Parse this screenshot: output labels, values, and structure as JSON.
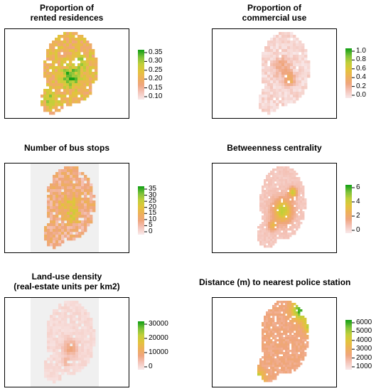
{
  "chart_data": [
    {
      "type": "heatmap",
      "title_lines": [
        "Proportion of",
        "rented residences"
      ],
      "legend_ticks": [
        "0.35",
        "0.30",
        "0.25",
        "0.20",
        "0.15",
        "0.10"
      ],
      "value_range": [
        0.07,
        0.37
      ],
      "dominant_color": "#e8c24a",
      "hotspot_color": "#1a9e1a"
    },
    {
      "type": "heatmap",
      "title_lines": [
        "Proportion of",
        "commercial use"
      ],
      "legend_ticks": [
        "1.0",
        "0.8",
        "0.6",
        "0.4",
        "0.2",
        "0.0"
      ],
      "value_range": [
        0.0,
        1.0
      ],
      "dominant_color": "#f6d3cf",
      "hotspot_color": "#1a9e1a"
    },
    {
      "type": "heatmap",
      "title_lines": [
        "Number of bus stops"
      ],
      "legend_ticks": [
        "35",
        "30",
        "25",
        "20",
        "15",
        "10",
        "5",
        "0"
      ],
      "value_range": [
        0,
        38
      ],
      "dominant_color": "#f2b89a",
      "hotspot_color": "#1a9e1a"
    },
    {
      "type": "heatmap",
      "title_lines": [
        "Betweenness centrality"
      ],
      "legend_ticks": [
        "6",
        "4",
        "2",
        "0"
      ],
      "value_range": [
        -0.8,
        7
      ],
      "dominant_color": "#f5cfc6",
      "hotspot_color": "#1a9e1a"
    },
    {
      "type": "heatmap",
      "title_lines": [
        "Land-use density",
        "(real-estate units per km2)"
      ],
      "legend_ticks": [
        "30000",
        "20000",
        "10000",
        "0"
      ],
      "value_range": [
        0,
        38000
      ],
      "dominant_color": "#f8dcd8",
      "hotspot_color": "#1a9e1a"
    },
    {
      "type": "heatmap",
      "title_lines": [
        "Distance (m) to nearest police station"
      ],
      "legend_ticks": [
        "6000",
        "5000",
        "4000",
        "3000",
        "2000",
        "1000"
      ],
      "value_range": [
        0,
        7000
      ],
      "dominant_color": "#f0b060",
      "hotspot_color": "#1a9e1a"
    }
  ]
}
